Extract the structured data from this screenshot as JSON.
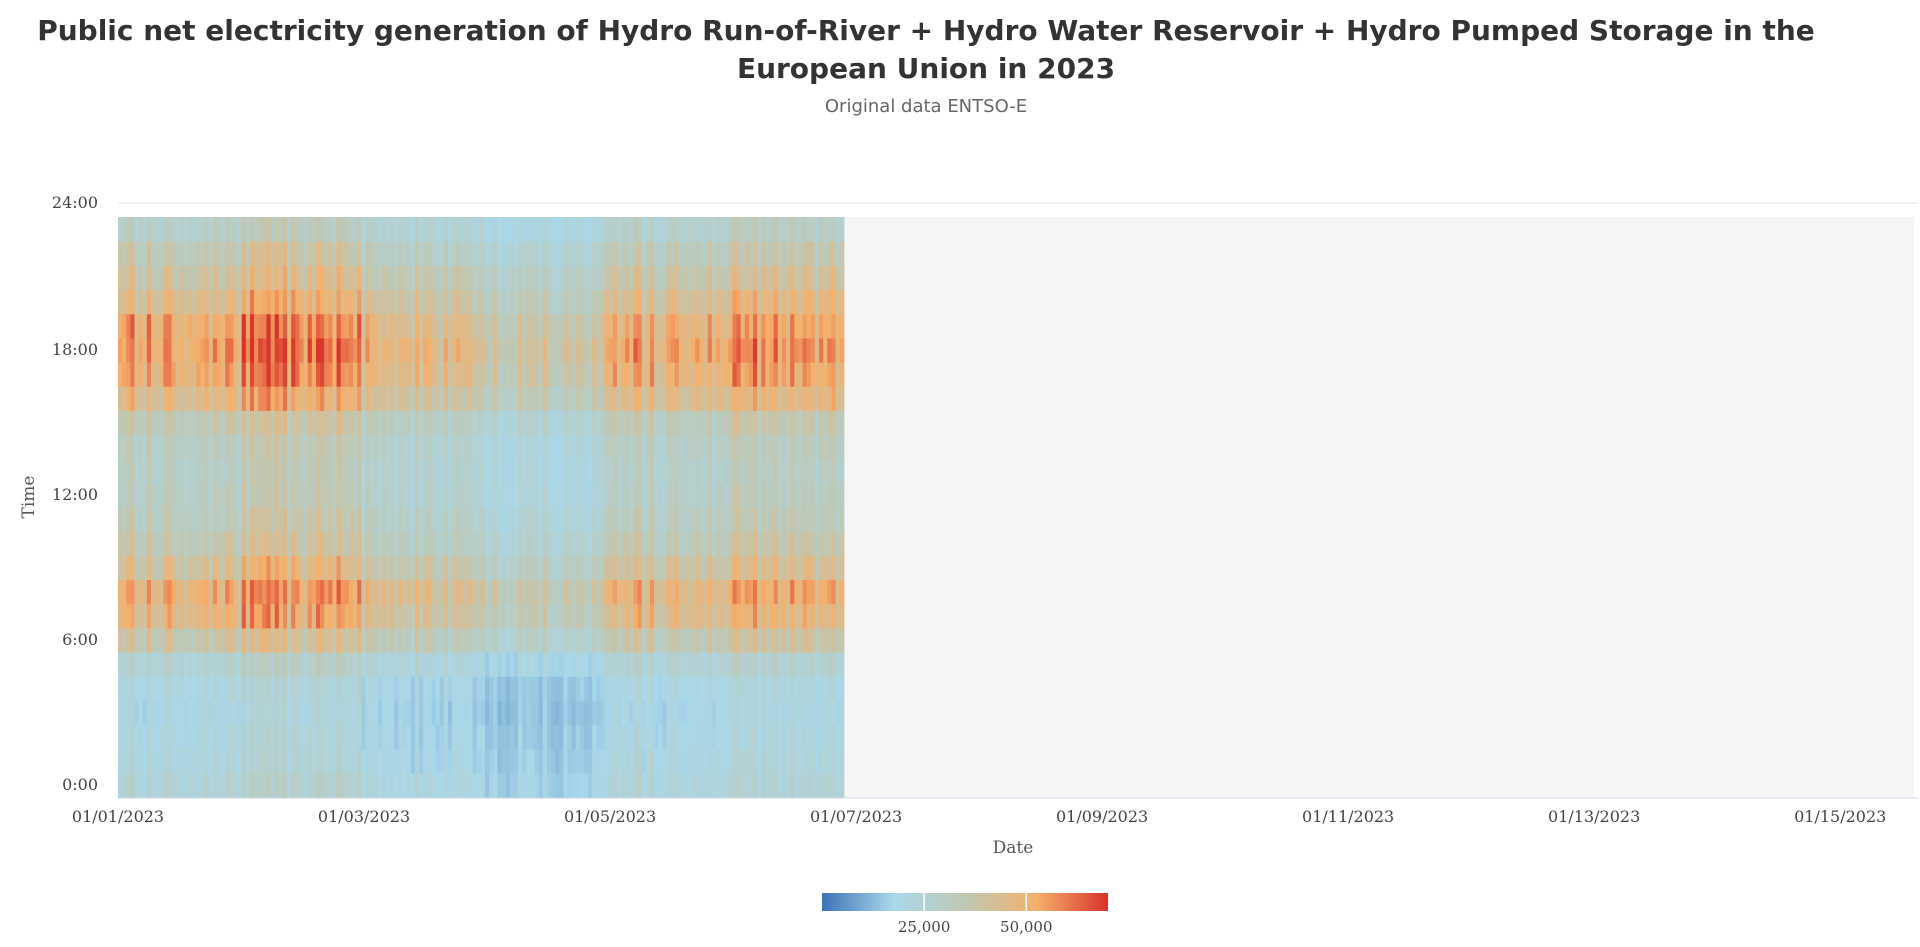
{
  "title": "Public net electricity generation of Hydro Run-of-River + Hydro Water Reservoir + Hydro Pumped Storage in the European Union in 2023",
  "subtitle": "Original data ENTSO-E",
  "chart_data": {
    "type": "heatmap",
    "title": "Public net electricity generation of Hydro Run-of-River + Hydro Water Reservoir + Hydro Pumped Storage in the European Union in 2023",
    "subtitle": "Original data ENTSO-E",
    "xlabel": "Date",
    "ylabel": "Time",
    "x_tick_labels": [
      "01/01/2023",
      "01/03/2023",
      "01/05/2023",
      "01/07/2023",
      "01/09/2023",
      "01/11/2023",
      "01/13/2023",
      "01/15/2023"
    ],
    "y_tick_labels": [
      "0:00",
      "6:00",
      "12:00",
      "18:00",
      "24:00"
    ],
    "x_range_months": [
      0,
      14.6
    ],
    "data_months_covered": 5.9,
    "y_range_hours": [
      0,
      24
    ],
    "colorbar": {
      "stops": [
        "#3d72b6",
        "#a9d8ea",
        "#bfc8b4",
        "#f5b06b",
        "#d9332a"
      ],
      "min": 0,
      "max": 70000,
      "tick_values": [
        25000,
        50000
      ],
      "tick_labels": [
        "25,000",
        "50,000"
      ]
    },
    "hourly_profile_mwh": [
      24000,
      22000,
      21000,
      20000,
      21000,
      26000,
      38000,
      47000,
      50000,
      42000,
      36000,
      33000,
      31000,
      30000,
      31000,
      35000,
      46000,
      52000,
      55000,
      52000,
      45000,
      40000,
      35000,
      29000
    ],
    "period_level_factor": [
      1.0,
      1.12,
      0.85,
      0.72,
      0.95,
      1.02
    ],
    "no_data_color": "#f5f5f5"
  }
}
